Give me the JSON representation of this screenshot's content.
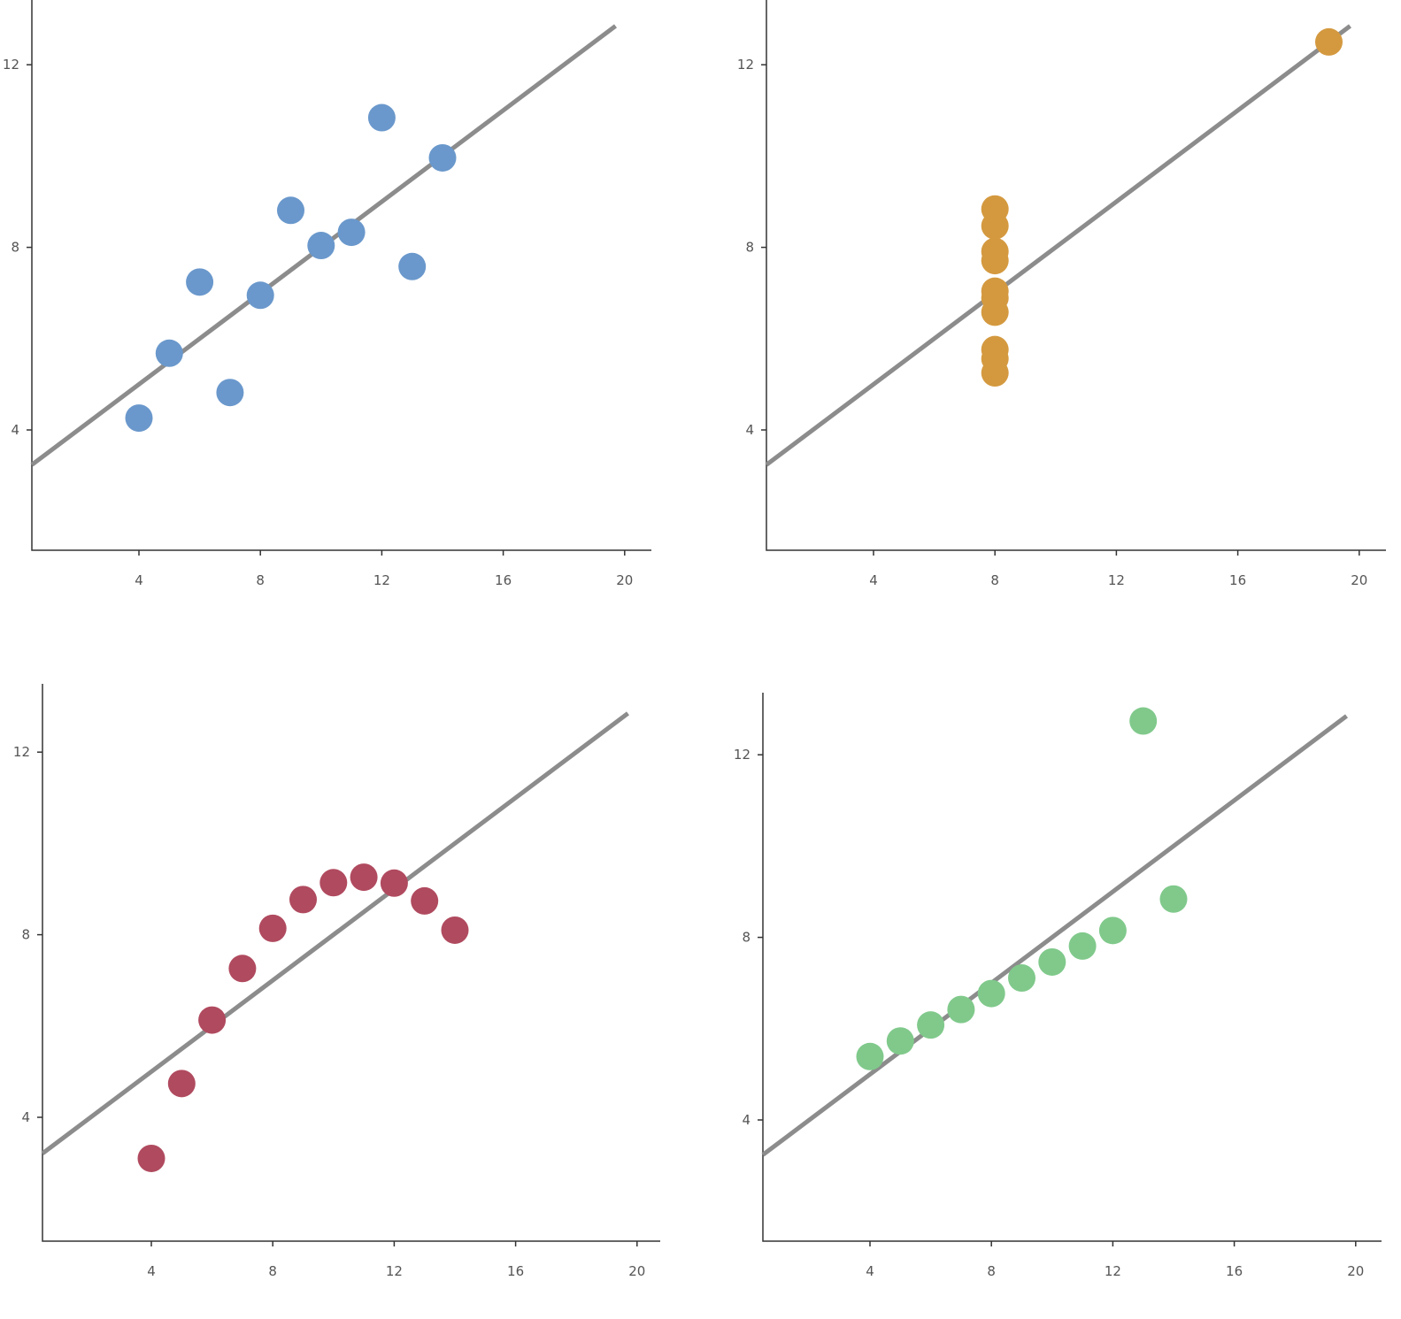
{
  "chart_data": [
    {
      "type": "scatter",
      "color": "#6a98cc",
      "x": [
        10,
        8,
        13,
        9,
        11,
        14,
        6,
        4,
        12,
        7,
        5
      ],
      "y": [
        8.04,
        6.95,
        7.58,
        8.81,
        8.33,
        9.96,
        7.24,
        4.26,
        10.84,
        4.82,
        5.68
      ],
      "fit_line": {
        "intercept": 3,
        "slope": 0.5,
        "color": "#8c8c8c"
      },
      "xlim": [
        0.5,
        20.9
      ],
      "ylim": [
        1.4,
        13.4
      ],
      "xticks": [
        4,
        8,
        12,
        16,
        20
      ],
      "yticks": [
        4,
        8,
        12
      ],
      "grid": false
    },
    {
      "type": "scatter",
      "color": "#d4993f",
      "x": [
        8,
        8,
        8,
        8,
        8,
        8,
        8,
        19,
        8,
        8,
        8
      ],
      "y": [
        6.58,
        5.76,
        7.71,
        8.84,
        8.47,
        7.04,
        5.25,
        12.5,
        5.56,
        7.91,
        6.89
      ],
      "fit_line": {
        "intercept": 3,
        "slope": 0.5,
        "color": "#8c8c8c"
      },
      "xlim": [
        0.5,
        20.9
      ],
      "ylim": [
        1.4,
        13.4
      ],
      "xticks": [
        4,
        8,
        12,
        16,
        20
      ],
      "yticks": [
        4,
        8,
        12
      ],
      "grid": false
    },
    {
      "type": "scatter",
      "color": "#b04a5f",
      "x": [
        10,
        8,
        13,
        9,
        11,
        14,
        6,
        4,
        12,
        7,
        5
      ],
      "y": [
        9.14,
        8.14,
        8.74,
        8.77,
        9.26,
        8.1,
        6.13,
        3.1,
        9.13,
        7.26,
        4.74
      ],
      "fit_line": {
        "intercept": 3,
        "slope": 0.5,
        "color": "#8c8c8c"
      },
      "xlim": [
        0.5,
        20.9
      ],
      "ylim": [
        1.4,
        13.4
      ],
      "xticks": [
        4,
        8,
        12,
        16,
        20
      ],
      "yticks": [
        4,
        8,
        12
      ],
      "grid": false
    },
    {
      "type": "scatter",
      "color": "#80c98b",
      "x": [
        10,
        8,
        13,
        9,
        11,
        14,
        6,
        4,
        12,
        7,
        5
      ],
      "y": [
        7.46,
        6.77,
        12.74,
        7.11,
        7.81,
        8.84,
        6.08,
        5.39,
        8.15,
        6.42,
        5.73
      ],
      "fit_line": {
        "intercept": 3,
        "slope": 0.5,
        "color": "#8c8c8c"
      },
      "xlim": [
        0.5,
        20.9
      ],
      "ylim": [
        1.4,
        13.4
      ],
      "xticks": [
        4,
        8,
        12,
        16,
        20
      ],
      "yticks": [
        4,
        8,
        12
      ],
      "grid": false
    }
  ]
}
